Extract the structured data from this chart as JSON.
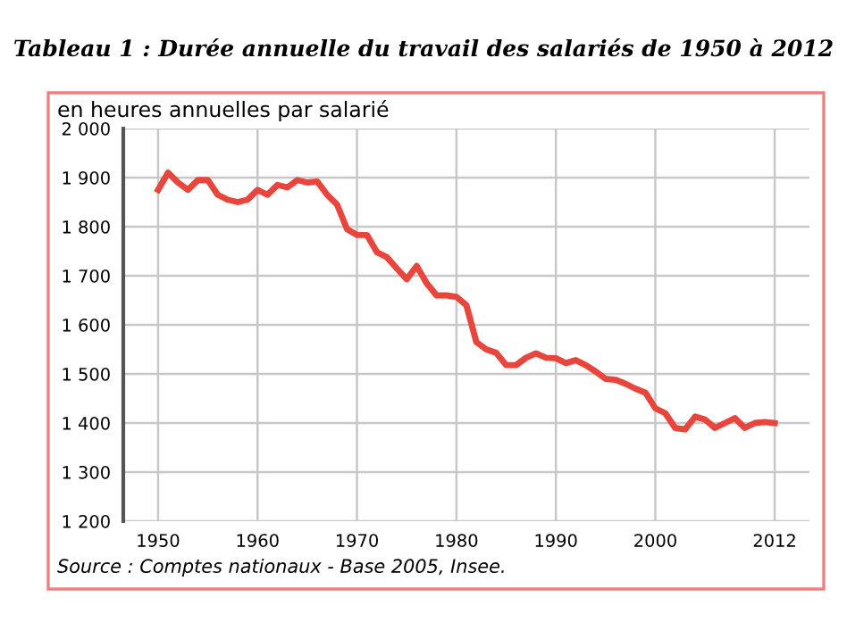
{
  "chart_data": {
    "type": "line",
    "title": "Tableau 1 : Durée annuelle du travail des salariés de 1950 à 2012",
    "ylabel": "en heures annuelles par salarié",
    "x": [
      1950,
      1951,
      1952,
      1953,
      1954,
      1955,
      1956,
      1957,
      1958,
      1959,
      1960,
      1961,
      1962,
      1963,
      1964,
      1965,
      1966,
      1967,
      1968,
      1969,
      1970,
      1971,
      1972,
      1973,
      1974,
      1975,
      1976,
      1977,
      1978,
      1979,
      1980,
      1981,
      1982,
      1983,
      1984,
      1985,
      1986,
      1987,
      1988,
      1989,
      1990,
      1991,
      1992,
      1993,
      1994,
      1995,
      1996,
      1997,
      1998,
      1999,
      2000,
      2001,
      2002,
      2003,
      2004,
      2005,
      2006,
      2007,
      2008,
      2009,
      2010,
      2011,
      2012
    ],
    "series": [
      {
        "color": "#e8453c",
        "values": [
          1875,
          1910,
          1890,
          1875,
          1895,
          1895,
          1865,
          1855,
          1850,
          1855,
          1875,
          1865,
          1885,
          1880,
          1895,
          1890,
          1892,
          1865,
          1845,
          1795,
          1783,
          1783,
          1748,
          1738,
          1715,
          1693,
          1720,
          1685,
          1660,
          1660,
          1657,
          1640,
          1565,
          1550,
          1543,
          1518,
          1518,
          1533,
          1542,
          1533,
          1532,
          1522,
          1528,
          1518,
          1505,
          1490,
          1488,
          1480,
          1470,
          1462,
          1430,
          1420,
          1390,
          1387,
          1413,
          1407,
          1390,
          1400,
          1410,
          1390,
          1400,
          1402,
          1400
        ]
      }
    ],
    "xlim": [
      1946.5,
      2015.5
    ],
    "xticks": [
      1950,
      1960,
      1970,
      1980,
      1990,
      2000,
      2012
    ],
    "ylim": [
      1200,
      2000
    ],
    "yticks": [
      {
        "value": 1200,
        "label": "1 200"
      },
      {
        "value": 1300,
        "label": "1 300"
      },
      {
        "value": 1400,
        "label": "1 400"
      },
      {
        "value": 1500,
        "label": "1 500"
      },
      {
        "value": 1600,
        "label": "1 600"
      },
      {
        "value": 1700,
        "label": "1 700"
      },
      {
        "value": 1800,
        "label": "1 800"
      },
      {
        "value": 1900,
        "label": "1 900"
      },
      {
        "value": 2000,
        "label": "2 000"
      }
    ],
    "grid": true,
    "marker": "none",
    "line_style": "solid",
    "legend": false,
    "annotations": [
      "Source : Comptes nationaux - Base 2005, Insee."
    ]
  }
}
